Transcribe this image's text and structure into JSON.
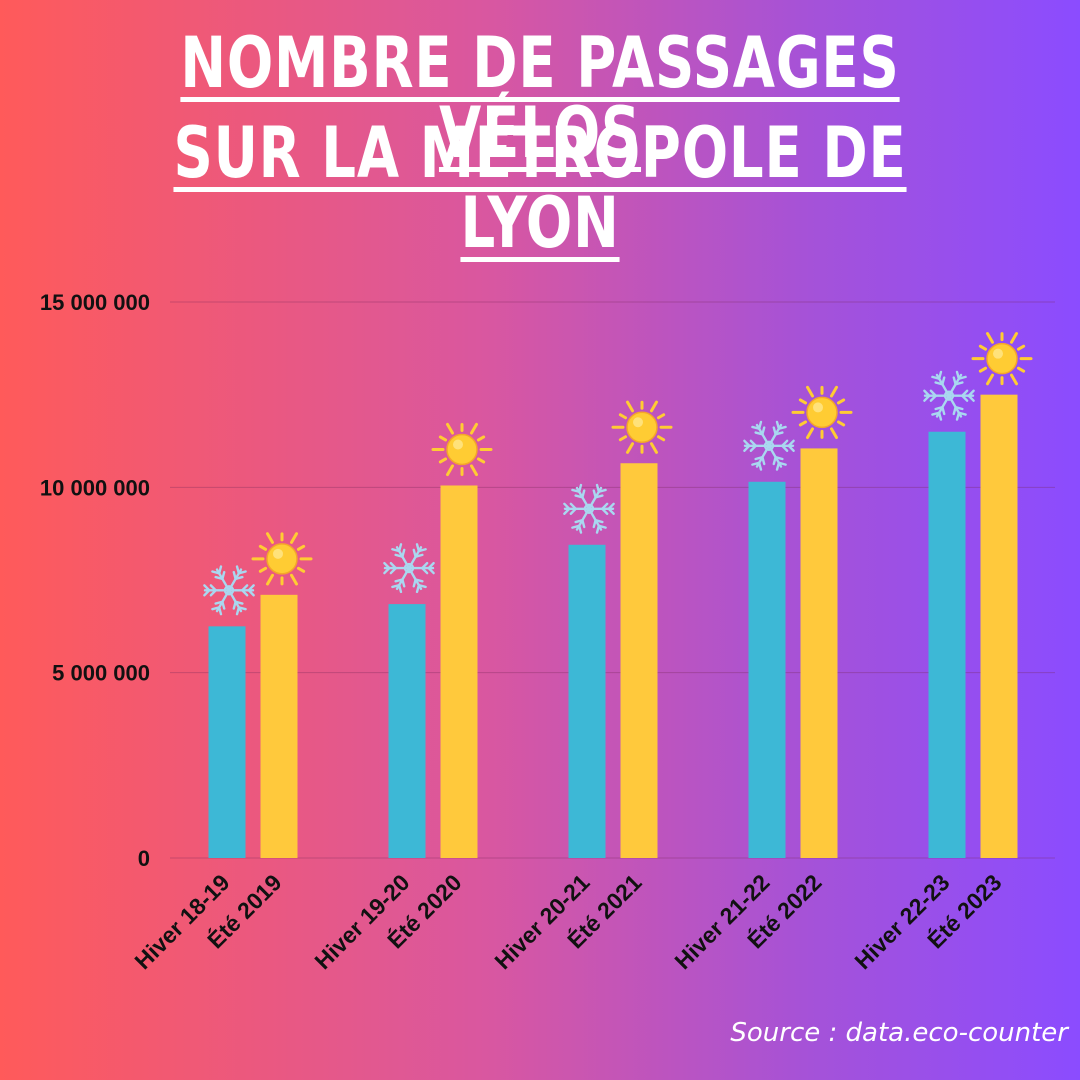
{
  "title": {
    "line1": "NOMBRE DE PASSAGES VÉLOS",
    "line2": "SUR LA MÉTROPOLE DE LYON"
  },
  "source": "Source : data.eco-counter",
  "colors": {
    "winter": "#3db8d6",
    "summer": "#ffc93c",
    "snowflake": "#a9d8f0",
    "sun": "#ffcc33"
  },
  "icons": {
    "winter": "snowflake-icon",
    "summer": "sun-icon"
  },
  "chart_data": {
    "type": "bar",
    "title": "NOMBRE DE PASSAGES VÉLOS SUR LA MÉTROPOLE DE LYON",
    "xlabel": "",
    "ylabel": "",
    "ylim": [
      0,
      15000000
    ],
    "yticks": [
      0,
      5000000,
      10000000,
      15000000
    ],
    "ytick_labels": [
      "0",
      "5 000 000",
      "10 000 000",
      "15 000 000"
    ],
    "grid": true,
    "legend": "none",
    "categories": [
      "Hiver 18-19",
      "Été 2019",
      "Hiver 19-20",
      "Été 2020",
      "Hiver 20-21",
      "Été 2021",
      "Hiver 21-22",
      "Été 2022",
      "Hiver 22-23",
      "Été 2023"
    ],
    "values": [
      6250000,
      7100000,
      6850000,
      10050000,
      8450000,
      10650000,
      10150000,
      11050000,
      11500000,
      12500000
    ],
    "season": [
      "winter",
      "summer",
      "winter",
      "summer",
      "winter",
      "summer",
      "winter",
      "summer",
      "winter",
      "summer"
    ]
  }
}
